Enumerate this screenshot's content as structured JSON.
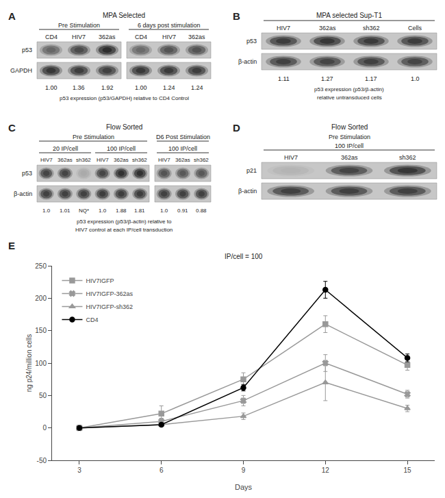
{
  "chart_data": [
    {
      "type": "blot",
      "panel_label": "A",
      "title": "MPA Selected",
      "groups": [
        {
          "name": "Pre Stimulation",
          "columns": [
            "CD4",
            "HIV7",
            "362as"
          ]
        },
        {
          "name": "6 days post stimulation",
          "columns": [
            "CD4",
            "HIV7",
            "362as"
          ]
        }
      ],
      "rows": [
        {
          "name": "p53",
          "intensities": [
            0.5,
            0.65,
            0.8,
            0.48,
            0.6,
            0.6
          ]
        },
        {
          "name": "GAPDH",
          "intensities": [
            0.75,
            0.72,
            0.7,
            0.74,
            0.73,
            0.72
          ]
        }
      ],
      "values": [
        1.0,
        1.36,
        1.92,
        1.0,
        1.24,
        1.24
      ],
      "value_labels": [
        "1.00",
        "1.36",
        "1.92",
        "1.00",
        "1.24",
        "1.24"
      ],
      "caption": [
        "p53 expression (p53/GAPDH) relative to CD4 Control"
      ]
    },
    {
      "type": "blot",
      "panel_label": "B",
      "title": "MPA selected Sup-T1",
      "groups": [
        {
          "columns": [
            "HIV7",
            "362as",
            "sh362",
            "Cells"
          ]
        }
      ],
      "rows": [
        {
          "name": "p53",
          "intensities": [
            0.72,
            0.75,
            0.73,
            0.72
          ]
        },
        {
          "name": "β-actin",
          "intensities": [
            0.7,
            0.68,
            0.7,
            0.68
          ]
        }
      ],
      "values": [
        1.11,
        1.27,
        1.17,
        1.0
      ],
      "value_labels": [
        "1.11",
        "1.27",
        "1.17",
        "1.0"
      ],
      "caption": [
        "p53 expression (p53/β-actin)",
        "relative untransduced cells"
      ]
    },
    {
      "type": "blot",
      "panel_label": "C",
      "title": "Flow Sorted",
      "groups": [
        {
          "name": "Pre Stimulation",
          "groups": [
            {
              "name": "20 IP/cell",
              "columns": [
                "HIV7",
                "362as",
                "sh362"
              ]
            },
            {
              "name": "100 IP/cell",
              "columns": [
                "HIV7",
                "362as",
                "sh362"
              ]
            }
          ]
        },
        {
          "name": "D6 Post Stimulation",
          "groups": [
            {
              "name": "100 IP/cell",
              "columns": [
                "HIV7",
                "362as",
                "sh362"
              ]
            }
          ]
        }
      ],
      "rows": [
        {
          "name": "p53",
          "intensities": [
            0.68,
            0.68,
            0.15,
            0.68,
            0.78,
            0.78,
            0.6,
            0.58,
            0.58
          ]
        },
        {
          "name": "β-actin",
          "intensities": [
            0.7,
            0.7,
            0.7,
            0.72,
            0.72,
            0.72,
            0.7,
            0.7,
            0.7
          ]
        }
      ],
      "values": [
        1.0,
        1.01,
        null,
        1.0,
        1.88,
        1.81,
        1.0,
        0.91,
        0.88
      ],
      "value_labels": [
        "1.0",
        "1.01",
        "NQ*",
        "1.0",
        "1.88",
        "1.81",
        "1.0",
        "0.91",
        "0.88"
      ],
      "caption": [
        "p53 expression (p53/β-actin) relative to",
        "HIV7 control at each IP/cell transduction"
      ]
    },
    {
      "type": "blot",
      "panel_label": "D",
      "title": "Flow Sorted",
      "subtitle": "Pre Stimulation",
      "groups": [
        {
          "name": "100 IP/cell",
          "columns": [
            "HIV7",
            "362as",
            "sh362"
          ]
        }
      ],
      "rows": [
        {
          "name": "p21",
          "intensities": [
            0.1,
            0.68,
            0.75
          ]
        },
        {
          "name": "β-actin",
          "intensities": [
            0.7,
            0.7,
            0.7
          ]
        }
      ]
    },
    {
      "type": "line",
      "panel_label": "E",
      "title": "IP/cell = 100",
      "xlabel": "Days",
      "ylabel": "ng p24/million cells",
      "x": [
        3,
        6,
        9,
        12,
        15
      ],
      "xlim": [
        2,
        16
      ],
      "xticks": [
        3,
        6,
        9,
        12,
        15
      ],
      "ylim": [
        -50,
        250
      ],
      "yticks": [
        -50,
        0,
        50,
        100,
        150,
        200,
        250
      ],
      "grid": false,
      "legend": "upper left",
      "series": [
        {
          "name": "HIV7IGFP",
          "color": "#999999",
          "marker": "square",
          "values": [
            0,
            22,
            75,
            160,
            97
          ],
          "errors": [
            1,
            12,
            10,
            13,
            8
          ]
        },
        {
          "name": "HIV7IGFP-362as",
          "color": "#999999",
          "marker": "x",
          "values": [
            0,
            10,
            42,
            100,
            52
          ],
          "errors": [
            1,
            5,
            8,
            13,
            6
          ]
        },
        {
          "name": "HIV7IGFP-sh362",
          "color": "#999999",
          "marker": "triangle-up",
          "values": [
            0,
            5,
            18,
            70,
            30
          ],
          "errors": [
            1,
            3,
            5,
            28,
            5
          ]
        },
        {
          "name": "CD4",
          "color": "#000000",
          "marker": "circle",
          "values": [
            0,
            5,
            62,
            213,
            108
          ],
          "errors": [
            1,
            2,
            5,
            13,
            6
          ]
        }
      ]
    }
  ]
}
